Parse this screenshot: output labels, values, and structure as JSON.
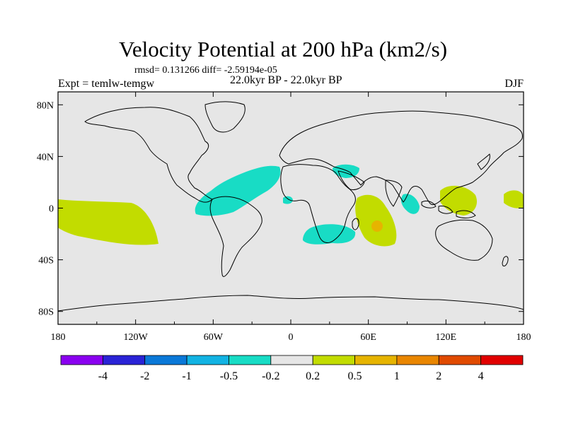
{
  "title": "Velocity Potential at 200 hPa (km2/s)",
  "stats": "rmsd= 0.131266 diff= -2.59194e-05",
  "expt": "Expt = temlw-temgw",
  "period": "22.0kyr BP - 22.0kyr BP",
  "season": "DJF",
  "map": {
    "lon_range": [
      -180,
      180
    ],
    "lat_range": [
      -90,
      90
    ],
    "lon_ticks": [
      {
        "v": -180,
        "label": "180"
      },
      {
        "v": -120,
        "label": "120W"
      },
      {
        "v": -60,
        "label": "60W"
      },
      {
        "v": 0,
        "label": "0"
      },
      {
        "v": 60,
        "label": "60E"
      },
      {
        "v": 120,
        "label": "120E"
      },
      {
        "v": 180,
        "label": "180"
      }
    ],
    "lat_ticks": [
      {
        "v": 80,
        "label": "80N"
      },
      {
        "v": 40,
        "label": "40N"
      },
      {
        "v": 0,
        "label": "0"
      },
      {
        "v": -40,
        "label": "40S"
      },
      {
        "v": -80,
        "label": "80S"
      }
    ],
    "background_color": "#e6e6e6"
  },
  "colorbar": {
    "colors": [
      "#8a00f0",
      "#2a23d6",
      "#0a78d8",
      "#12b3e3",
      "#18dcc5",
      "#e6e6e6",
      "#c2dc00",
      "#e6b400",
      "#e98600",
      "#e04a00",
      "#e10000"
    ],
    "labels": [
      "-4",
      "-2",
      "-1",
      "-0.5",
      "-0.2",
      "0.2",
      "0.5",
      "1",
      "2",
      "4"
    ]
  }
}
